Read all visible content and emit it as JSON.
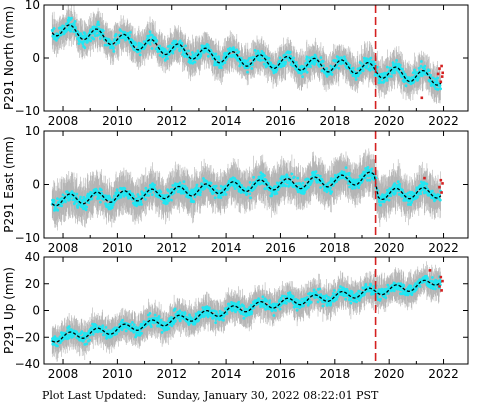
{
  "colors": {
    "error_bar": "#b4b4b4",
    "data_point": "#22e6f2",
    "model_line": "#000000",
    "event_line": "#d42020",
    "recent_point": "#d42020",
    "frame": "#000000"
  },
  "footer": {
    "label": "Plot Last Updated:",
    "timestamp": "Sunday, January 30, 2022 08:22:01 PST"
  },
  "chart_data": [
    {
      "type": "scatter",
      "station": "P291",
      "ylabel": "P291 North (mm)",
      "xlim": [
        2007.3,
        2022.9
      ],
      "ylim": [
        -10,
        10
      ],
      "xticks": [
        2008,
        2010,
        2012,
        2014,
        2016,
        2018,
        2020,
        2022
      ],
      "xtick_labels": [
        "2008",
        "2010",
        "2012",
        "2014",
        "2016",
        "2018",
        "2020",
        "2022"
      ],
      "yticks": [
        -10,
        0,
        10
      ],
      "ytick_labels": [
        "−10",
        "0",
        "10"
      ],
      "event_line_x": 2019.5,
      "data_span": [
        2007.6,
        2021.9
      ],
      "model": {
        "start_value": 5.5,
        "end_value": -4.0,
        "seasonal_amplitude": 1.2,
        "scatter": 1.1,
        "error_bar": 2.5
      },
      "model_points": {
        "x": [
          2007.6,
          2009.0,
          2011.0,
          2013.0,
          2015.0,
          2017.0,
          2019.0,
          2019.6,
          2021.9
        ],
        "y": [
          5.5,
          4.5,
          2.5,
          0.8,
          -0.5,
          -1.2,
          -1.8,
          -2.5,
          -4.0
        ]
      },
      "recent_points": {
        "x": [
          2021.2,
          2021.8,
          2021.85,
          2021.9,
          2021.93,
          2021.95,
          2021.97
        ],
        "y": [
          -7.5,
          -3.0,
          -2.0,
          -4.5,
          -1.5,
          -3.5,
          -2.8
        ]
      }
    },
    {
      "type": "scatter",
      "station": "P291",
      "ylabel": "P291 East (mm)",
      "xlim": [
        2007.3,
        2022.9
      ],
      "ylim": [
        -10,
        10
      ],
      "xticks": [
        2008,
        2010,
        2012,
        2014,
        2016,
        2018,
        2020,
        2022
      ],
      "xtick_labels": [
        "2008",
        "2010",
        "2012",
        "2014",
        "2016",
        "2018",
        "2020",
        "2022"
      ],
      "yticks": [
        -10,
        0,
        10
      ],
      "ytick_labels": [
        "−10",
        "0",
        "10"
      ],
      "event_line_x": 2019.5,
      "data_span": [
        2007.6,
        2021.9
      ],
      "model": {
        "start_value": -3.0,
        "end_value": -1.5,
        "seasonal_amplitude": 1.0,
        "scatter": 1.1,
        "error_bar": 3.0
      },
      "model_points": {
        "x": [
          2007.6,
          2009.0,
          2011.0,
          2013.0,
          2015.0,
          2017.0,
          2019.0,
          2019.45,
          2019.6,
          2021.9
        ],
        "y": [
          -3.0,
          -2.5,
          -2.0,
          -1.0,
          -0.2,
          0.3,
          1.0,
          1.5,
          -1.8,
          -1.5
        ]
      },
      "recent_points": {
        "x": [
          2021.3,
          2021.85,
          2021.9,
          2021.93,
          2021.96
        ],
        "y": [
          1.2,
          -0.5,
          0.8,
          -1.5,
          0.2
        ]
      }
    },
    {
      "type": "scatter",
      "station": "P291",
      "ylabel": "P291 Up (mm)",
      "xlim": [
        2007.3,
        2022.9
      ],
      "ylim": [
        -40,
        40
      ],
      "xticks": [
        2008,
        2010,
        2012,
        2014,
        2016,
        2018,
        2020,
        2022
      ],
      "xtick_labels": [
        "2008",
        "2010",
        "2012",
        "2014",
        "2016",
        "2018",
        "2020",
        "2022"
      ],
      "yticks": [
        -40,
        -20,
        0,
        20,
        40
      ],
      "ytick_labels": [
        "−40",
        "−20",
        "0",
        "20",
        "40"
      ],
      "event_line_x": 2019.5,
      "data_span": [
        2007.6,
        2021.9
      ],
      "model": {
        "start_value": -21.0,
        "end_value": 23.0,
        "seasonal_amplitude": 3.0,
        "scatter": 4.0,
        "error_bar": 9.0
      },
      "model_points": {
        "x": [
          2007.6,
          2009.0,
          2011.0,
          2013.0,
          2015.0,
          2017.0,
          2019.0,
          2021.0,
          2021.9
        ],
        "y": [
          -21.0,
          -17.0,
          -11.0,
          -4.0,
          3.0,
          8.0,
          13.0,
          18.0,
          23.0
        ]
      },
      "recent_points": {
        "x": [
          2021.5,
          2021.85,
          2021.9,
          2021.93,
          2021.96
        ],
        "y": [
          30.0,
          18.0,
          25.0,
          15.0,
          22.0
        ]
      }
    }
  ]
}
